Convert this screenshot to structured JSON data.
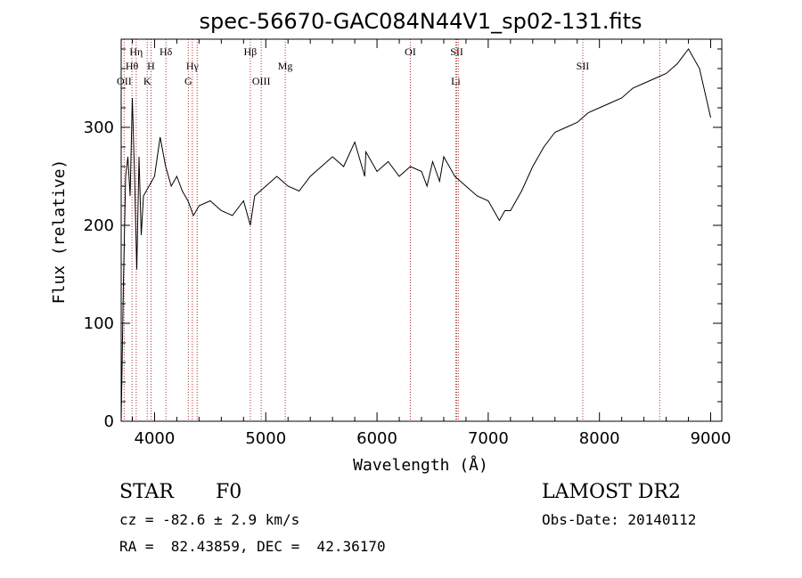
{
  "chart_data": {
    "type": "line",
    "title": "spec-56670-GAC084N44V1_sp02-131.fits",
    "xlabel": "Wavelength (Å)",
    "ylabel": "Flux (relative)",
    "xlim": [
      3700,
      9100
    ],
    "ylim": [
      0,
      390
    ],
    "xticks": [
      4000,
      5000,
      6000,
      7000,
      8000,
      9000
    ],
    "yticks": [
      0,
      100,
      200,
      300
    ],
    "grid": false,
    "line_color": "#000000",
    "marker_color": "#b03030",
    "series": [
      {
        "x": [
          3700,
          3720,
          3740,
          3760,
          3780,
          3800,
          3820,
          3840,
          3860,
          3880,
          3900,
          3950,
          4000,
          4050,
          4100,
          4150,
          4200,
          4250,
          4300,
          4350,
          4400,
          4500,
          4600,
          4700,
          4800,
          4861,
          4900,
          5000,
          5100,
          5200,
          5300,
          5400,
          5500,
          5600,
          5700,
          5800,
          5890,
          5900,
          6000,
          6100,
          6200,
          6300,
          6400,
          6450,
          6500,
          6563,
          6600,
          6700,
          6800,
          6900,
          7000,
          7100,
          7150,
          7200,
          7300,
          7400,
          7500,
          7600,
          7700,
          7800,
          7900,
          8000,
          8100,
          8200,
          8300,
          8400,
          8500,
          8600,
          8700,
          8800,
          8900,
          9000
        ],
        "y": [
          0,
          140,
          250,
          270,
          230,
          330,
          250,
          155,
          270,
          190,
          230,
          240,
          250,
          290,
          260,
          240,
          250,
          235,
          225,
          210,
          220,
          225,
          215,
          210,
          225,
          200,
          230,
          240,
          250,
          240,
          235,
          250,
          260,
          270,
          260,
          285,
          250,
          275,
          255,
          265,
          250,
          260,
          255,
          240,
          265,
          245,
          270,
          250,
          240,
          230,
          225,
          205,
          215,
          215,
          235,
          260,
          280,
          295,
          300,
          305,
          315,
          320,
          325,
          330,
          340,
          345,
          350,
          355,
          365,
          380,
          360,
          310
        ]
      }
    ],
    "line_markers": [
      {
        "label": "Hη",
        "x": 3835,
        "row": 0
      },
      {
        "label": "Hθ",
        "x": 3797,
        "row": 1
      },
      {
        "label": "OII",
        "x": 3727,
        "row": 2
      },
      {
        "label": "H",
        "x": 3968,
        "row": 1
      },
      {
        "label": "K",
        "x": 3934,
        "row": 2
      },
      {
        "label": "Hδ",
        "x": 4102,
        "row": 0
      },
      {
        "label": "Hγ",
        "x": 4340,
        "row": 1
      },
      {
        "label": "G",
        "x": 4304,
        "row": 2
      },
      {
        "label": "Hβ",
        "x": 4861,
        "row": 0
      },
      {
        "label": "OIII",
        "x": 4959,
        "row": 2
      },
      {
        "label": "Mg",
        "x": 5175,
        "row": 1
      },
      {
        "label": "OI",
        "x": 6300,
        "row": 0
      },
      {
        "label": "SII",
        "x": 6717,
        "row": 0
      },
      {
        "label": "Li",
        "x": 6708,
        "row": 2
      },
      {
        "label": "SII",
        "x": 7850,
        "row": 1
      },
      {
        "label": "",
        "x": 4383,
        "row": -1
      },
      {
        "label": "",
        "x": 6731,
        "row": -1
      },
      {
        "label": "",
        "x": 8542,
        "row": -1
      }
    ]
  },
  "info": {
    "class": "STAR",
    "subclass": "F0",
    "survey": "LAMOST DR2",
    "cz": "cz = -82.6 ± 2.9 km/s",
    "obs_date": "Obs-Date: 20140112",
    "radec": "RA =  82.43859, DEC =  42.36170"
  }
}
